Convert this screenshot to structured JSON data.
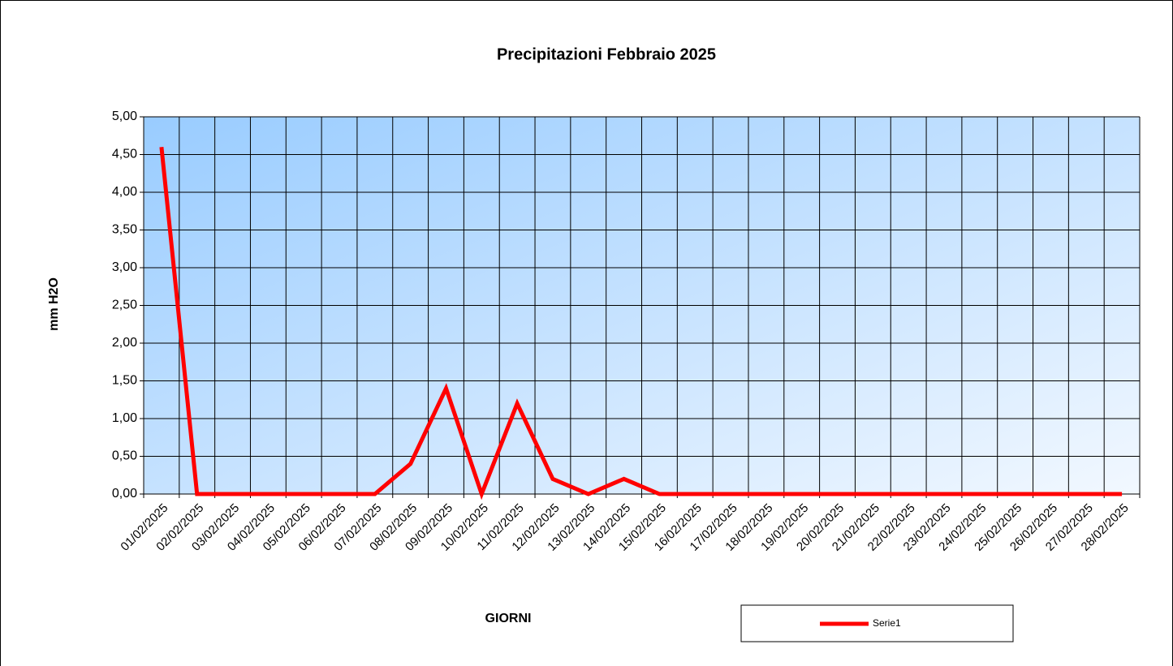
{
  "chart_data": {
    "type": "line",
    "title": "Precipitazioni Febbraio 2025",
    "y_label": "mm H2O",
    "x_label": "GIORNI",
    "categories": [
      "01/02/2025",
      "02/02/2025",
      "03/02/2025",
      "04/02/2025",
      "05/02/2025",
      "06/02/2025",
      "07/02/2025",
      "08/02/2025",
      "09/02/2025",
      "10/02/2025",
      "11/02/2025",
      "12/02/2025",
      "13/02/2025",
      "14/02/2025",
      "15/02/2025",
      "16/02/2025",
      "17/02/2025",
      "18/02/2025",
      "19/02/2025",
      "20/02/2025",
      "21/02/2025",
      "22/02/2025",
      "23/02/2025",
      "24/02/2025",
      "25/02/2025",
      "26/02/2025",
      "27/02/2025",
      "28/02/2025"
    ],
    "series": [
      {
        "name": "Serie1",
        "color": "#ff0000",
        "values": [
          4.6,
          0,
          0,
          0,
          0,
          0,
          0,
          0.4,
          1.4,
          0,
          1.2,
          0.2,
          0,
          0.2,
          0,
          0,
          0,
          0,
          0,
          0,
          0,
          0,
          0,
          0,
          0,
          0,
          0,
          0
        ]
      }
    ],
    "ylim": [
      0,
      5
    ],
    "yticks": [
      {
        "value": 0,
        "label": "0,00"
      },
      {
        "value": 0.5,
        "label": "0,50"
      },
      {
        "value": 1,
        "label": "1,00"
      },
      {
        "value": 1.5,
        "label": "1,50"
      },
      {
        "value": 2,
        "label": "2,00"
      },
      {
        "value": 2.5,
        "label": "2,50"
      },
      {
        "value": 3,
        "label": "3,00"
      },
      {
        "value": 3.5,
        "label": "3,50"
      },
      {
        "value": 4,
        "label": "4,00"
      },
      {
        "value": 4.5,
        "label": "4,50"
      },
      {
        "value": 5,
        "label": "5,00"
      }
    ],
    "grid": true,
    "legend": "bottom"
  }
}
